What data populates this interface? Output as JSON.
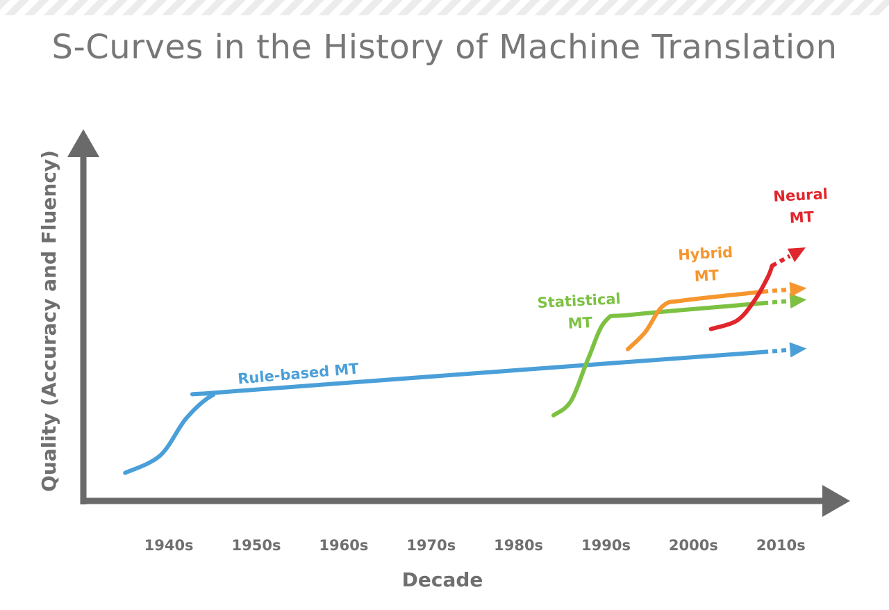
{
  "chart_data": {
    "type": "line",
    "title": "S-Curves in the History of Machine Translation",
    "xlabel": "Decade",
    "ylabel": "Quality (Accuracy and Fluency)",
    "categories": [
      "1940s",
      "1950s",
      "1960s",
      "1970s",
      "1980s",
      "1990s",
      "2000s",
      "2010s"
    ],
    "xlim": [
      1935,
      2020
    ],
    "ylim": [
      0,
      100
    ],
    "grid": false,
    "legend": "inline",
    "series": [
      {
        "name": "Rule-based MT",
        "label_lines": [
          "Rule-based MT"
        ],
        "color": "#4a9fd8",
        "points": [
          [
            1937,
            10
          ],
          [
            1941,
            16
          ],
          [
            1944,
            29
          ],
          [
            1947,
            37
          ],
          [
            1950,
            38.5
          ],
          [
            2010,
            52
          ]
        ],
        "extension": [
          [
            2010,
            52
          ],
          [
            2014,
            53
          ]
        ]
      },
      {
        "name": "Statistical MT",
        "label_lines": [
          "Statistical",
          "MT"
        ],
        "color": "#7dc142",
        "points": [
          [
            1986,
            30
          ],
          [
            1988,
            35
          ],
          [
            1990,
            50
          ],
          [
            1992,
            63
          ],
          [
            1995,
            65
          ],
          [
            2010,
            69
          ]
        ],
        "extension": [
          [
            2010,
            69
          ],
          [
            2014,
            70
          ]
        ]
      },
      {
        "name": "Hybrid MT",
        "label_lines": [
          "Hybrid",
          "MT"
        ],
        "color": "#f5962f",
        "points": [
          [
            1994.5,
            53
          ],
          [
            1996.5,
            59
          ],
          [
            1998.5,
            68
          ],
          [
            2001,
            70
          ],
          [
            2010,
            73
          ]
        ],
        "extension": [
          [
            2010,
            73
          ],
          [
            2014,
            74
          ]
        ]
      },
      {
        "name": "Neural MT",
        "label_lines": [
          "Neural",
          "MT"
        ],
        "color": "#e0262c",
        "points": [
          [
            2004,
            60
          ],
          [
            2007,
            63
          ],
          [
            2009,
            70
          ],
          [
            2010.5,
            78
          ],
          [
            2011,
            82
          ]
        ],
        "extension": [
          [
            2011,
            82
          ],
          [
            2014,
            87
          ]
        ]
      }
    ]
  }
}
